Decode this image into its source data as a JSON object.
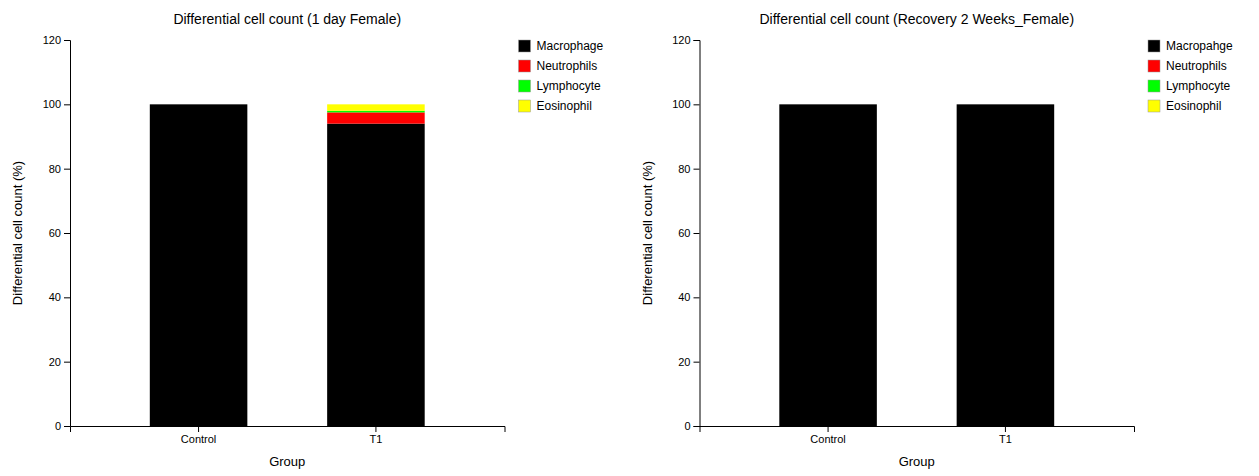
{
  "chart_data": [
    {
      "type": "bar",
      "stacked": true,
      "title": "Differential cell count (1 day Female)",
      "xlabel": "Group",
      "ylabel": "Differential cell count (%)",
      "categories": [
        "Control",
        "T1"
      ],
      "series": [
        {
          "name": "Macrophage",
          "color": "#000000",
          "values": [
            100,
            94
          ]
        },
        {
          "name": "Neutrophils",
          "color": "#ff0000",
          "values": [
            0,
            3.5
          ]
        },
        {
          "name": "Lymphocyte",
          "color": "#00ff00",
          "values": [
            0,
            0.5
          ]
        },
        {
          "name": "Eosinophil",
          "color": "#ffff00",
          "values": [
            0,
            2.0
          ]
        }
      ],
      "ylim": [
        0,
        120
      ],
      "yticks": [
        0,
        20,
        40,
        60,
        80,
        100,
        120
      ],
      "grid": false,
      "legend": "upper right"
    },
    {
      "type": "bar",
      "stacked": true,
      "title": "Differential cell count (Recovery 2 Weeks_Female)",
      "xlabel": "Group",
      "ylabel": "Differential cell count (%)",
      "categories": [
        "Control",
        "T1"
      ],
      "series": [
        {
          "name": "Macropahge",
          "color": "#000000",
          "values": [
            100,
            100
          ]
        },
        {
          "name": "Neutrophils",
          "color": "#ff0000",
          "values": [
            0,
            0
          ]
        },
        {
          "name": "Lymphocyte",
          "color": "#00ff00",
          "values": [
            0,
            0
          ]
        },
        {
          "name": "Eosinophil",
          "color": "#ffff00",
          "values": [
            0,
            0
          ]
        }
      ],
      "ylim": [
        0,
        120
      ],
      "yticks": [
        0,
        20,
        40,
        60,
        80,
        100,
        120
      ],
      "grid": false,
      "legend": "upper right"
    }
  ]
}
